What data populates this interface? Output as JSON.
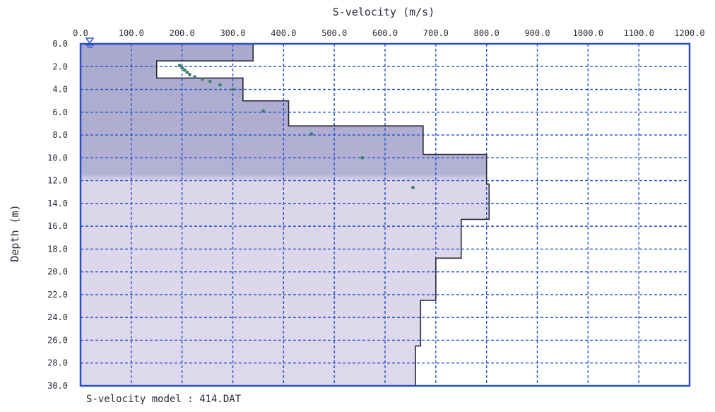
{
  "chart_data": {
    "type": "area",
    "title": "S-velocity (m/s)",
    "xlabel": "S-velocity (m/s)",
    "ylabel": "Depth (m)",
    "caption": "S-velocity model : 414.DAT",
    "xlim": [
      0,
      1200
    ],
    "ylim": [
      0,
      30
    ],
    "x_ticks": [
      "0.0",
      "100.0",
      "200.0",
      "300.0",
      "400.0",
      "500.0",
      "600.0",
      "700.0",
      "800.0",
      "900.0",
      "1000.0",
      "1100.0",
      "1200.0"
    ],
    "y_ticks": [
      "0.0",
      "2.0",
      "4.0",
      "6.0",
      "8.0",
      "10.0",
      "12.0",
      "14.0",
      "16.0",
      "18.0",
      "20.0",
      "22.0",
      "24.0",
      "26.0",
      "28.0",
      "30.0"
    ],
    "grid": true,
    "legend": "none",
    "model_layers": [
      {
        "top": 0.0,
        "bottom": 1.5,
        "velocity": 340
      },
      {
        "top": 1.5,
        "bottom": 3.0,
        "velocity": 150
      },
      {
        "top": 3.0,
        "bottom": 5.0,
        "velocity": 320
      },
      {
        "top": 5.0,
        "bottom": 7.2,
        "velocity": 410
      },
      {
        "top": 7.2,
        "bottom": 9.7,
        "velocity": 675
      },
      {
        "top": 9.7,
        "bottom": 12.3,
        "velocity": 800
      },
      {
        "top": 12.3,
        "bottom": 15.4,
        "velocity": 805
      },
      {
        "top": 15.4,
        "bottom": 18.8,
        "velocity": 750
      },
      {
        "top": 18.8,
        "bottom": 22.5,
        "velocity": 700
      },
      {
        "top": 22.5,
        "bottom": 26.5,
        "velocity": 670
      },
      {
        "top": 26.5,
        "bottom": 30.0,
        "velocity": 660
      }
    ],
    "observed_points": [
      {
        "x": 195,
        "y": 1.9
      },
      {
        "x": 200,
        "y": 2.1
      },
      {
        "x": 205,
        "y": 2.3
      },
      {
        "x": 210,
        "y": 2.5
      },
      {
        "x": 215,
        "y": 2.7
      },
      {
        "x": 225,
        "y": 2.9
      },
      {
        "x": 240,
        "y": 3.1
      },
      {
        "x": 255,
        "y": 3.3
      },
      {
        "x": 275,
        "y": 3.6
      },
      {
        "x": 300,
        "y": 4.0
      },
      {
        "x": 360,
        "y": 5.9
      },
      {
        "x": 455,
        "y": 7.9
      },
      {
        "x": 555,
        "y": 10.0
      },
      {
        "x": 655,
        "y": 12.6
      }
    ],
    "colors": {
      "grid": "#2a50c8",
      "fill_upper": "#a9a9cd",
      "fill_lower": "#dcd6ea",
      "model_line": "#2a2a3a",
      "points": "#3f7f6f",
      "surface_marker": "#2a50c8"
    }
  }
}
